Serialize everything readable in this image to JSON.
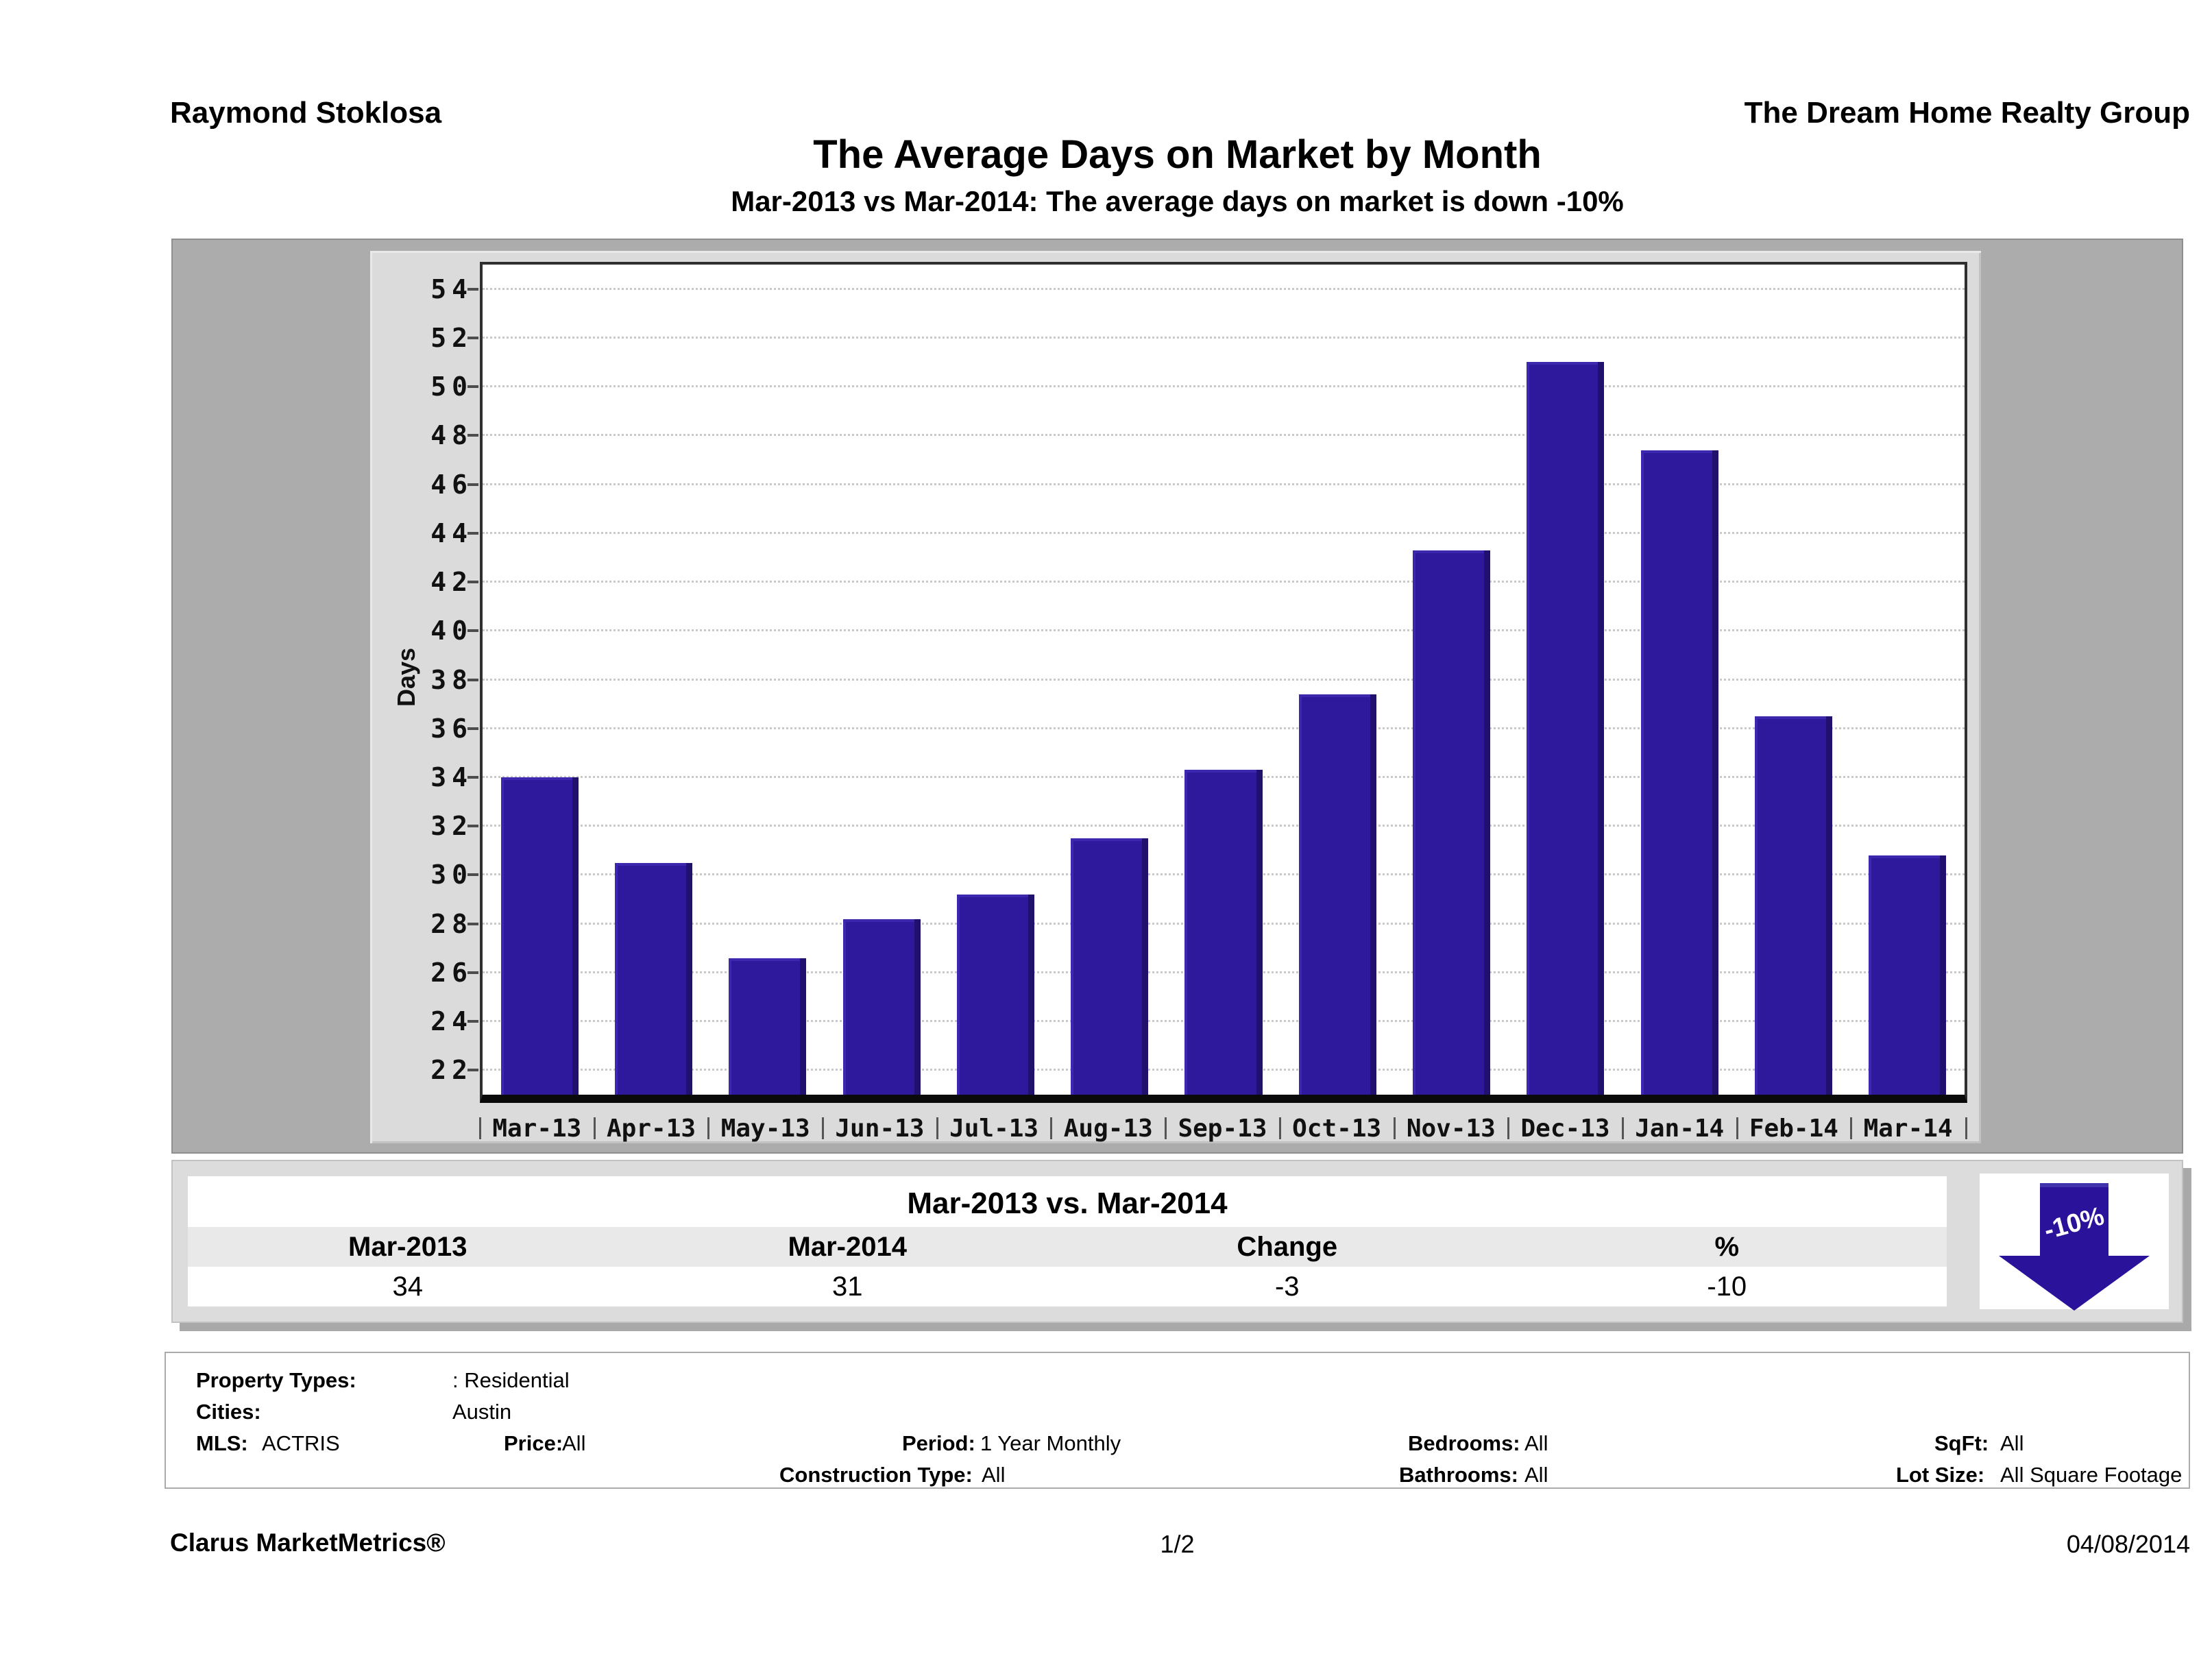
{
  "header": {
    "agent": "Raymond Stoklosa",
    "company": "The Dream Home Realty Group"
  },
  "title": "The Average Days on Market by Month",
  "subtitle": "Mar-2013 vs Mar-2014: The average days on market is down -10%",
  "chart_data": {
    "type": "bar",
    "title": "The Average Days on Market by Month",
    "xlabel": "",
    "ylabel": "Days",
    "categories": [
      "Mar-13",
      "Apr-13",
      "May-13",
      "Jun-13",
      "Jul-13",
      "Aug-13",
      "Sep-13",
      "Oct-13",
      "Nov-13",
      "Dec-13",
      "Jan-14",
      "Feb-14",
      "Mar-14"
    ],
    "values": [
      34,
      30.5,
      26.6,
      28.2,
      29.2,
      31.5,
      34.3,
      37.4,
      43.3,
      51,
      47.4,
      36.5,
      30.8
    ],
    "ylim": [
      21,
      55
    ],
    "yticks": [
      22,
      24,
      26,
      28,
      30,
      32,
      34,
      36,
      38,
      40,
      42,
      44,
      46,
      48,
      50,
      52,
      54
    ],
    "grid": "horizontal-dotted",
    "legend": "none",
    "bar_color": "#2e189b"
  },
  "comparison": {
    "title": "Mar-2013 vs. Mar-2014",
    "columns": [
      "Mar-2013",
      "Mar-2014",
      "Change",
      "%"
    ],
    "values": [
      "34",
      "31",
      "-3",
      "-10"
    ],
    "arrow_label": "-10%",
    "arrow_color": "#2a129b"
  },
  "filters": {
    "property_types_label": "Property Types:",
    "property_types_value": ": Residential",
    "cities_label": "Cities:",
    "cities_value": "Austin",
    "mls_label": "MLS:",
    "mls_value": "ACTRIS",
    "price_label": "Price:",
    "price_value": "All",
    "period_label": "Period:",
    "period_value": "1 Year Monthly",
    "construction_label": "Construction Type:",
    "construction_value": "All",
    "bedrooms_label": "Bedrooms:",
    "bedrooms_value": "All",
    "bathrooms_label": "Bathrooms:",
    "bathrooms_value": "All",
    "sqft_label": "SqFt:",
    "sqft_value": "All",
    "lotsize_label": "Lot Size:",
    "lotsize_value": "All Square Footage"
  },
  "footer": {
    "left": "Clarus MarketMetrics®",
    "center": "1/2",
    "right": "04/08/2014"
  },
  "colors": {
    "bar": "#2e189b",
    "chart_region_bg": "#acacac",
    "chart_panel_bg": "#dbdbdb",
    "table_header_bg": "#e9e9e9"
  }
}
